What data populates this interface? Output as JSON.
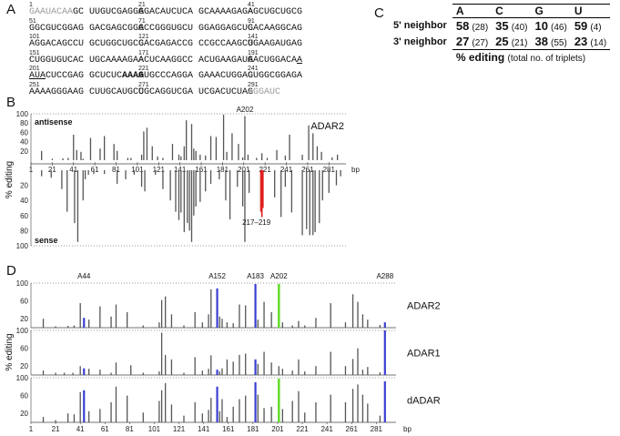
{
  "panels": {
    "a": "A",
    "b": "B",
    "c": "C",
    "d": "D"
  },
  "sequence": {
    "rows": [
      {
        "nums": [
          "1",
          "21",
          "41"
        ],
        "blocks": [
          [
            {
              "t": "GAAUACAA",
              "s": "grey"
            },
            {
              "t": "GC UUGUCGAGGA"
            }
          ],
          [
            {
              "t": "GGACAUCUCA GCAAAAGAGA"
            }
          ],
          [
            {
              "t": "AGCUGCUGCG"
            }
          ]
        ]
      },
      {
        "nums": [
          "51",
          "71",
          "91"
        ],
        "blocks": [
          [
            {
              "t": "GGCGUCGGAG GACGAGCGGG"
            }
          ],
          [
            {
              "t": "ACCGGGUGCU GGAGGAGCUG"
            }
          ],
          [
            {
              "t": "CACAAGGCAG"
            }
          ]
        ]
      },
      {
        "nums": [
          "101",
          "121",
          "141"
        ],
        "blocks": [
          [
            {
              "t": "AGGACAGCCU GCUGGCUGCC"
            }
          ],
          [
            {
              "t": "GACGAGACCG CCGCCAAGCU"
            }
          ],
          [
            {
              "t": "GGAAGAUGAG"
            }
          ]
        ]
      },
      {
        "nums": [
          "151",
          "171",
          "191"
        ],
        "blocks": [
          [
            {
              "t": "CUGGUGUCAC UGCAAAAGAA"
            }
          ],
          [
            {
              "t": "ACUCAAGGCC ACUGAAGAUG"
            }
          ],
          [
            {
              "t": "AACUGGACA"
            },
            {
              "t": "A",
              "s": "ul"
            }
          ]
        ]
      },
      {
        "nums": [
          "201",
          "221",
          "241"
        ],
        "blocks": [
          [
            {
              "t": "AUA",
              "s": "ul"
            },
            {
              "t": "CUCCGAG GCUCUC"
            },
            {
              "t": "AAAG",
              "s": "bold"
            }
          ],
          [
            {
              "t": "AUGCCCAGGA GAAACUGGAG"
            }
          ],
          [
            {
              "t": "CUGGCGGAGA"
            }
          ]
        ]
      },
      {
        "nums": [
          "251",
          "271",
          "291"
        ],
        "blocks": [
          [
            {
              "t": "AAAAGGGAAG CUUGCAUGCC"
            }
          ],
          [
            {
              "t": "UGCAGGUCGA UCGACUCUAG"
            }
          ],
          [
            {
              "t": "AGGAUC",
              "s": "grey"
            }
          ]
        ]
      }
    ]
  },
  "table_c": {
    "headers": [
      "A",
      "C",
      "G",
      "U"
    ],
    "rows": [
      {
        "label": "5' neighbor",
        "values": [
          "58",
          "35",
          "10",
          "59"
        ],
        "counts": [
          "(28)",
          "(40)",
          "(46)",
          "(4)"
        ]
      },
      {
        "label": "3' neighbor",
        "values": [
          "27",
          "25",
          "38",
          "23"
        ],
        "counts": [
          "(27)",
          "(21)",
          "(55)",
          "(14)"
        ]
      }
    ],
    "footer_main": "% editing",
    "footer_note": "(total no. of triplets)"
  },
  "chart_data": [
    {
      "type": "bar",
      "panel": "B",
      "enzyme_label": "ADAR2",
      "antisense_label": "antisense",
      "sense_label": "sense",
      "ylabel": "% editing",
      "xlabel": "bp",
      "xlim": [
        1,
        297
      ],
      "ylim": [
        0,
        100
      ],
      "x_ticks": [
        "1",
        "21",
        "41",
        "61",
        "81",
        "101",
        "121",
        "141",
        "161",
        "181",
        "201",
        "221",
        "241",
        "261",
        "281"
      ],
      "y_ticks_top": [
        "100",
        "80",
        "60",
        "40",
        "20"
      ],
      "y_ticks_bottom": [
        "20",
        "40",
        "60",
        "80",
        "100"
      ],
      "peak_label": "A202",
      "highlight_label": "217–219",
      "highlight_color": "#e02020",
      "bar_color": "#555555",
      "antisense": {
        "x": [
          11,
          21,
          31,
          36,
          41,
          44,
          48,
          50,
          57,
          66,
          70,
          79,
          82,
          92,
          95,
          105,
          107,
          110,
          115,
          120,
          125,
          134,
          140,
          142,
          145,
          147,
          152,
          154,
          156,
          160,
          165,
          170,
          175,
          182,
          185,
          190,
          196,
          200,
          202,
          205,
          213,
          218,
          223,
          232,
          240,
          244,
          256,
          262,
          266,
          270,
          274,
          284,
          289
        ],
        "values": [
          20,
          3,
          4,
          5,
          55,
          22,
          18,
          3,
          48,
          25,
          52,
          35,
          20,
          5,
          5,
          12,
          62,
          70,
          30,
          8,
          5,
          35,
          12,
          8,
          30,
          86,
          78,
          25,
          20,
          12,
          10,
          52,
          50,
          98,
          18,
          58,
          35,
          6,
          95,
          12,
          5,
          15,
          5,
          22,
          10,
          55,
          12,
          75,
          58,
          30,
          18,
          6,
          12
        ]
      },
      "sense": {
        "x": [
          11,
          20,
          30,
          35,
          42,
          45,
          50,
          52,
          55,
          60,
          70,
          82,
          90,
          98,
          105,
          108,
          118,
          125,
          132,
          137,
          140,
          142,
          145,
          148,
          150,
          152,
          154,
          156,
          160,
          165,
          170,
          178,
          184,
          188,
          195,
          200,
          202,
          206,
          218,
          230,
          236,
          240,
          246,
          256,
          260,
          263,
          266,
          268,
          272,
          275,
          281,
          288,
          292
        ],
        "values": [
          8,
          10,
          25,
          55,
          70,
          95,
          40,
          12,
          6,
          5,
          5,
          18,
          12,
          6,
          22,
          28,
          6,
          25,
          40,
          55,
          66,
          56,
          82,
          70,
          80,
          95,
          60,
          48,
          42,
          28,
          18,
          12,
          40,
          65,
          22,
          48,
          95,
          30,
          62,
          36,
          62,
          22,
          56,
          86,
          78,
          86,
          86,
          82,
          70,
          40,
          30,
          20,
          8
        ],
        "highlight_x": [
          217,
          218,
          219
        ],
        "highlight_values": [
          55,
          62,
          50
        ]
      }
    },
    {
      "type": "bar",
      "panel": "D",
      "ylabel": "% editing",
      "xlabel": "bp",
      "xlim": [
        1,
        297
      ],
      "ylim": [
        0,
        100
      ],
      "x_ticks": [
        "1",
        "21",
        "41",
        "61",
        "81",
        "101",
        "121",
        "141",
        "161",
        "181",
        "201",
        "221",
        "241",
        "261",
        "281"
      ],
      "y_ticks": [
        "100",
        "60",
        "20"
      ],
      "site_labels": [
        {
          "x": 44,
          "label": "A44"
        },
        {
          "x": 152,
          "label": "A152"
        },
        {
          "x": 183,
          "label": "A183"
        },
        {
          "x": 202,
          "label": "A202"
        },
        {
          "x": 288,
          "label": "A288"
        }
      ],
      "highlight_blue": "#3a3fd0",
      "highlight_green": "#66dd33",
      "bar_color": "#555555",
      "series": [
        {
          "name": "ADAR2",
          "x": [
            11,
            21,
            31,
            36,
            41,
            44,
            48,
            57,
            66,
            70,
            79,
            92,
            105,
            107,
            110,
            115,
            125,
            134,
            140,
            145,
            147,
            152,
            154,
            156,
            160,
            165,
            170,
            175,
            183,
            185,
            190,
            196,
            202,
            205,
            213,
            218,
            223,
            232,
            244,
            256,
            262,
            266,
            270,
            274,
            284,
            288
          ],
          "values": [
            20,
            3,
            4,
            5,
            55,
            22,
            18,
            48,
            25,
            52,
            35,
            5,
            12,
            62,
            70,
            30,
            5,
            35,
            12,
            30,
            86,
            88,
            25,
            20,
            12,
            10,
            52,
            50,
            98,
            18,
            58,
            35,
            98,
            12,
            5,
            15,
            5,
            22,
            55,
            12,
            75,
            58,
            30,
            18,
            6,
            12
          ],
          "blue_x": [
            44,
            152,
            183,
            288
          ],
          "green_x": [
            202
          ]
        },
        {
          "name": "ADAR1",
          "x": [
            11,
            21,
            28,
            35,
            41,
            44,
            48,
            57,
            66,
            70,
            82,
            92,
            105,
            107,
            110,
            115,
            125,
            134,
            140,
            145,
            147,
            152,
            154,
            156,
            160,
            165,
            170,
            175,
            183,
            185,
            190,
            196,
            202,
            205,
            213,
            218,
            223,
            232,
            244,
            256,
            262,
            266,
            270,
            274,
            284,
            288
          ],
          "values": [
            10,
            5,
            5,
            5,
            20,
            15,
            14,
            12,
            5,
            28,
            22,
            5,
            8,
            95,
            45,
            35,
            5,
            40,
            10,
            14,
            44,
            12,
            8,
            15,
            35,
            30,
            45,
            48,
            35,
            25,
            52,
            28,
            20,
            14,
            10,
            35,
            8,
            20,
            52,
            20,
            36,
            60,
            12,
            18,
            6,
            100
          ],
          "blue_x": [
            44,
            152,
            183,
            288
          ],
          "green_x": []
        },
        {
          "name": "dADAR",
          "x": [
            11,
            21,
            31,
            36,
            41,
            44,
            48,
            57,
            66,
            70,
            79,
            92,
            105,
            107,
            110,
            115,
            125,
            134,
            140,
            145,
            147,
            152,
            154,
            156,
            160,
            165,
            170,
            175,
            183,
            185,
            190,
            196,
            202,
            205,
            213,
            218,
            223,
            232,
            244,
            256,
            262,
            266,
            270,
            274,
            284,
            288
          ],
          "values": [
            12,
            5,
            20,
            18,
            68,
            72,
            25,
            30,
            45,
            80,
            60,
            22,
            48,
            72,
            88,
            40,
            15,
            45,
            20,
            28,
            55,
            80,
            25,
            52,
            12,
            35,
            52,
            60,
            90,
            62,
            32,
            35,
            98,
            30,
            48,
            70,
            22,
            45,
            62,
            45,
            75,
            85,
            62,
            42,
            15,
            92
          ],
          "blue_x": [
            44,
            152,
            183,
            288
          ],
          "green_x": [
            202
          ]
        }
      ]
    }
  ]
}
